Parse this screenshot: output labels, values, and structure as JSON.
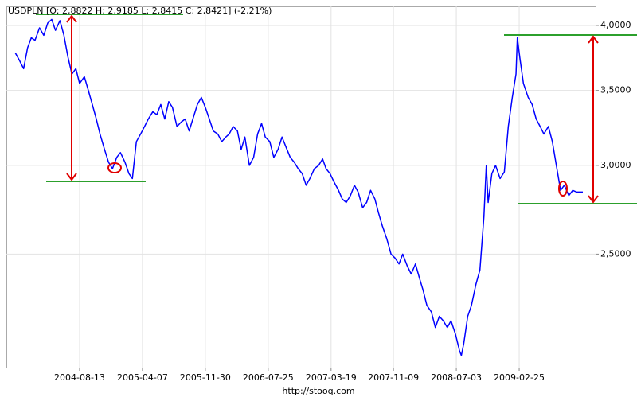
{
  "chart_data": {
    "type": "line",
    "title": "USDPLN [O: 2,8822 H: 2,9185 L: 2,8415 C: 2,8421] (-2,21%)",
    "footer": "http://stooq.com",
    "color": "#0000ff",
    "y_log": true,
    "grid": true,
    "xlim": [
      "2003-11-11",
      "2009-12-10"
    ],
    "xticks": [
      "2004-08-13",
      "2005-04-07",
      "2005-11-30",
      "2006-07-25",
      "2007-03-19",
      "2007-11-09",
      "2008-07-03",
      "2009-02-25"
    ],
    "ylim": [
      1.98,
      4.16
    ],
    "yticks": [
      {
        "value": 2.5,
        "label": "2,5000"
      },
      {
        "value": 3,
        "label": "3,0000"
      },
      {
        "value": 3.5,
        "label": "3,5000"
      },
      {
        "value": 4,
        "label": "4,0000"
      }
    ],
    "x": [
      "2003-12-15",
      "2003-12-31",
      "2004-01-15",
      "2004-01-30",
      "2004-02-13",
      "2004-02-27",
      "2004-03-15",
      "2004-03-31",
      "2004-04-15",
      "2004-04-30",
      "2004-05-14",
      "2004-05-31",
      "2004-06-15",
      "2004-06-30",
      "2004-07-15",
      "2004-07-30",
      "2004-08-13",
      "2004-08-31",
      "2004-09-15",
      "2004-09-30",
      "2004-10-15",
      "2004-10-29",
      "2004-11-15",
      "2004-11-30",
      "2004-12-15",
      "2004-12-31",
      "2005-01-14",
      "2005-01-31",
      "2005-02-15",
      "2005-02-28",
      "2005-03-15",
      "2005-03-31",
      "2005-04-15",
      "2005-04-29",
      "2005-05-16",
      "2005-05-31",
      "2005-06-15",
      "2005-06-30",
      "2005-07-15",
      "2005-07-29",
      "2005-08-15",
      "2005-08-31",
      "2005-09-15",
      "2005-09-30",
      "2005-10-14",
      "2005-10-31",
      "2005-11-15",
      "2005-11-30",
      "2005-12-15",
      "2005-12-30",
      "2006-01-16",
      "2006-01-31",
      "2006-02-15",
      "2006-02-28",
      "2006-03-15",
      "2006-03-31",
      "2006-04-14",
      "2006-04-28",
      "2006-05-15",
      "2006-05-31",
      "2006-06-15",
      "2006-06-30",
      "2006-07-14",
      "2006-07-31",
      "2006-08-15",
      "2006-08-31",
      "2006-09-15",
      "2006-09-29",
      "2006-10-16",
      "2006-10-31",
      "2006-11-15",
      "2006-11-30",
      "2006-12-15",
      "2006-12-29",
      "2007-01-15",
      "2007-01-31",
      "2007-02-15",
      "2007-02-28",
      "2007-03-15",
      "2007-03-30",
      "2007-04-16",
      "2007-04-30",
      "2007-05-15",
      "2007-05-31",
      "2007-06-15",
      "2007-06-29",
      "2007-07-16",
      "2007-07-31",
      "2007-08-15",
      "2007-08-31",
      "2007-09-14",
      "2007-09-28",
      "2007-10-15",
      "2007-10-31",
      "2007-11-15",
      "2007-11-30",
      "2007-12-14",
      "2007-12-31",
      "2008-01-15",
      "2008-01-31",
      "2008-02-15",
      "2008-02-29",
      "2008-03-14",
      "2008-03-31",
      "2008-04-15",
      "2008-04-30",
      "2008-05-15",
      "2008-05-30",
      "2008-06-13",
      "2008-06-30",
      "2008-07-15",
      "2008-07-22",
      "2008-07-31",
      "2008-08-15",
      "2008-08-29",
      "2008-09-15",
      "2008-09-30",
      "2008-10-15",
      "2008-10-24",
      "2008-10-31",
      "2008-11-14",
      "2008-11-28",
      "2008-12-15",
      "2008-12-31",
      "2009-01-15",
      "2009-01-30",
      "2009-02-13",
      "2009-02-18",
      "2009-02-27",
      "2009-03-13",
      "2009-03-31",
      "2009-04-15",
      "2009-04-30",
      "2009-05-15",
      "2009-05-29",
      "2009-06-15",
      "2009-06-30",
      "2009-07-15",
      "2009-07-31",
      "2009-08-14",
      "2009-08-31",
      "2009-09-15",
      "2009-09-30",
      "2009-10-23"
    ],
    "values": [
      3.78,
      3.72,
      3.66,
      3.82,
      3.9,
      3.88,
      3.98,
      3.92,
      4.02,
      4.05,
      3.96,
      4.04,
      3.92,
      3.75,
      3.62,
      3.66,
      3.55,
      3.6,
      3.5,
      3.4,
      3.3,
      3.2,
      3.1,
      3.02,
      2.98,
      3.05,
      3.08,
      3.02,
      2.95,
      2.92,
      3.15,
      3.2,
      3.25,
      3.3,
      3.35,
      3.33,
      3.4,
      3.3,
      3.42,
      3.38,
      3.25,
      3.28,
      3.3,
      3.22,
      3.3,
      3.4,
      3.45,
      3.38,
      3.3,
      3.22,
      3.2,
      3.15,
      3.18,
      3.2,
      3.25,
      3.22,
      3.1,
      3.18,
      3.0,
      3.05,
      3.2,
      3.27,
      3.18,
      3.15,
      3.05,
      3.1,
      3.18,
      3.12,
      3.05,
      3.02,
      2.98,
      2.95,
      2.88,
      2.92,
      2.98,
      3.0,
      3.04,
      2.98,
      2.95,
      2.9,
      2.85,
      2.8,
      2.78,
      2.82,
      2.88,
      2.84,
      2.75,
      2.78,
      2.85,
      2.8,
      2.72,
      2.65,
      2.58,
      2.5,
      2.48,
      2.45,
      2.5,
      2.44,
      2.4,
      2.45,
      2.38,
      2.32,
      2.25,
      2.22,
      2.15,
      2.2,
      2.18,
      2.15,
      2.18,
      2.12,
      2.05,
      2.03,
      2.08,
      2.2,
      2.25,
      2.35,
      2.42,
      2.7,
      3.0,
      2.78,
      2.95,
      3.0,
      2.92,
      2.96,
      3.25,
      3.45,
      3.62,
      3.9,
      3.75,
      3.55,
      3.45,
      3.4,
      3.3,
      3.25,
      3.2,
      3.25,
      3.15,
      3.0,
      2.85,
      2.88,
      2.82,
      2.85,
      2.84,
      2.84
    ]
  }
}
